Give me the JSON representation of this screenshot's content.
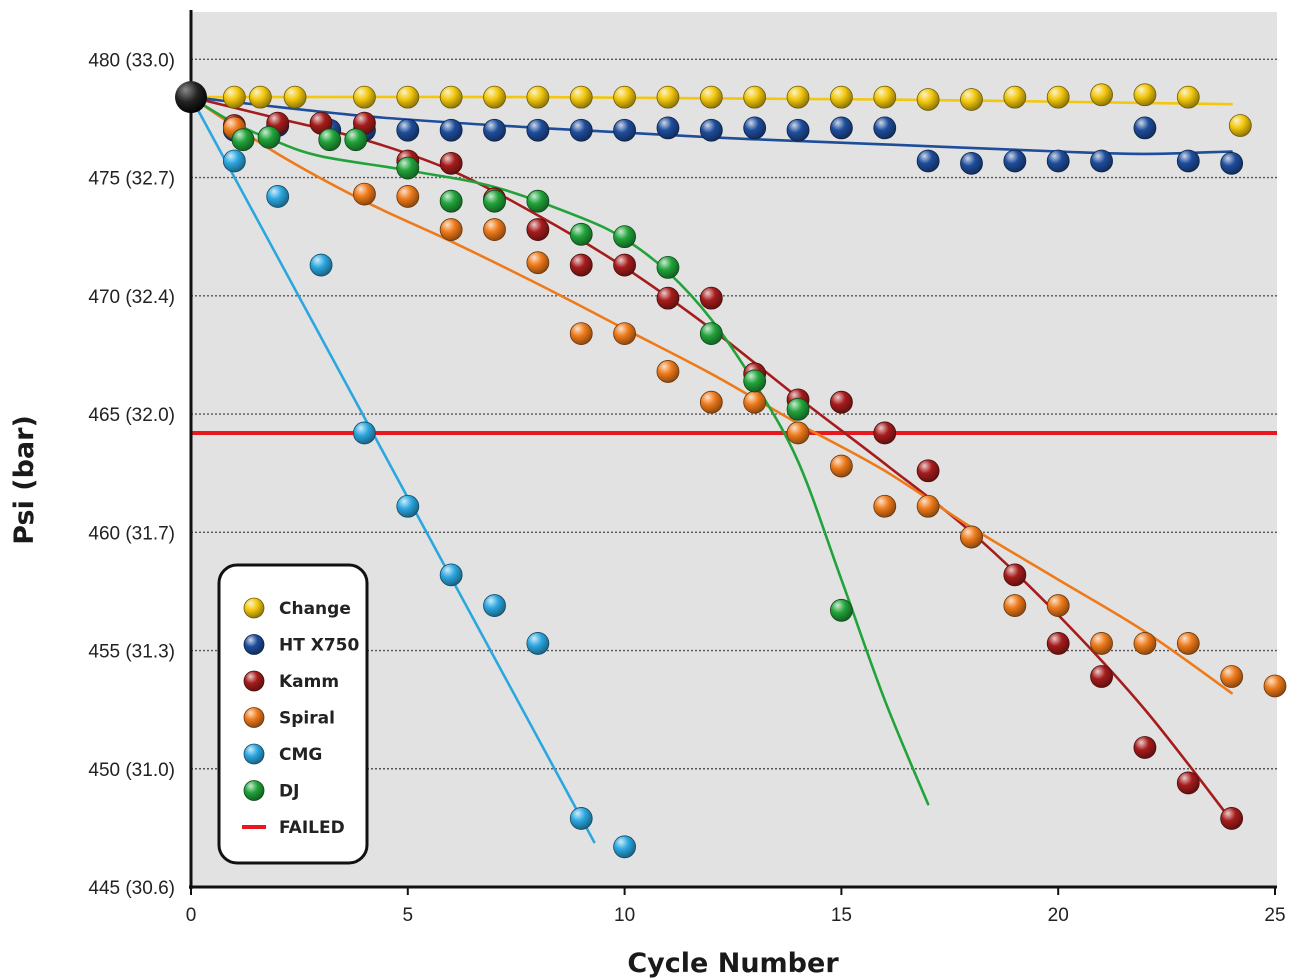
{
  "chart_data": {
    "type": "scatter",
    "xlabel": "Cycle Number",
    "ylabel": "Psi (bar)",
    "xlim": [
      0,
      25
    ],
    "ylim": [
      445,
      482
    ],
    "grid": "horizontal dotted",
    "legend_position": "bottom-left",
    "x_ticks": [
      {
        "value": 0,
        "label": "0"
      },
      {
        "value": 5,
        "label": "5"
      },
      {
        "value": 10,
        "label": "10"
      },
      {
        "value": 15,
        "label": "15"
      },
      {
        "value": 20,
        "label": "20"
      },
      {
        "value": 25,
        "label": "25"
      }
    ],
    "y_ticks": [
      {
        "value": 445,
        "label": "445 (30.6)"
      },
      {
        "value": 450,
        "label": "450 (31.0)"
      },
      {
        "value": 455,
        "label": "455 (31.3)"
      },
      {
        "value": 460,
        "label": "460 (31.7)"
      },
      {
        "value": 465,
        "label": "465 (32.0)"
      },
      {
        "value": 470,
        "label": "470 (32.4)"
      },
      {
        "value": 475,
        "label": "475 (32.7)"
      },
      {
        "value": 480,
        "label": "480 (33.0)"
      }
    ],
    "start_point": {
      "x": 0,
      "y": 478.4
    },
    "failed_threshold": {
      "name": "FAILED",
      "value": 464.2,
      "color": "#e8191e"
    },
    "series": [
      {
        "name": "Change",
        "color": "#f2c70c",
        "points": [
          [
            1,
            478.4
          ],
          [
            1.6,
            478.4
          ],
          [
            2.4,
            478.4
          ],
          [
            4,
            478.4
          ],
          [
            5,
            478.4
          ],
          [
            6,
            478.4
          ],
          [
            7,
            478.4
          ],
          [
            8,
            478.4
          ],
          [
            9,
            478.4
          ],
          [
            10,
            478.4
          ],
          [
            11,
            478.4
          ],
          [
            12,
            478.4
          ],
          [
            13,
            478.4
          ],
          [
            14,
            478.4
          ],
          [
            15,
            478.4
          ],
          [
            16,
            478.4
          ],
          [
            17,
            478.3
          ],
          [
            18,
            478.3
          ],
          [
            19,
            478.4
          ],
          [
            20,
            478.4
          ],
          [
            21,
            478.5
          ],
          [
            22,
            478.5
          ],
          [
            23,
            478.4
          ],
          [
            24.2,
            477.2
          ]
        ],
        "fit": [
          [
            0,
            478.4
          ],
          [
            8,
            478.4
          ],
          [
            16,
            478.3
          ],
          [
            24,
            478.1
          ]
        ]
      },
      {
        "name": "HT X750",
        "color": "#1e4d9c",
        "points": [
          [
            1,
            477.0
          ],
          [
            2,
            477.2
          ],
          [
            3.2,
            477.0
          ],
          [
            4,
            477.0
          ],
          [
            5,
            477.0
          ],
          [
            6,
            477.0
          ],
          [
            7,
            477.0
          ],
          [
            8,
            477.0
          ],
          [
            9,
            477.0
          ],
          [
            10,
            477.0
          ],
          [
            11,
            477.1
          ],
          [
            12,
            477.0
          ],
          [
            13,
            477.1
          ],
          [
            14,
            477.0
          ],
          [
            15,
            477.1
          ],
          [
            16,
            477.1
          ],
          [
            17,
            475.7
          ],
          [
            18,
            475.6
          ],
          [
            19,
            475.7
          ],
          [
            20,
            475.7
          ],
          [
            21,
            475.7
          ],
          [
            22,
            477.1
          ],
          [
            23,
            475.7
          ],
          [
            24,
            475.6
          ]
        ],
        "fit": [
          [
            0,
            478.4
          ],
          [
            4,
            477.6
          ],
          [
            8,
            477.1
          ],
          [
            12,
            476.7
          ],
          [
            16,
            476.4
          ],
          [
            20,
            476.1
          ],
          [
            22,
            476.0
          ],
          [
            24,
            476.1
          ]
        ]
      },
      {
        "name": "Kamm",
        "color": "#a61c1c",
        "points": [
          [
            1,
            477.2
          ],
          [
            2,
            477.3
          ],
          [
            3,
            477.3
          ],
          [
            4,
            477.3
          ],
          [
            5,
            475.7
          ],
          [
            6,
            475.6
          ],
          [
            7,
            474.1
          ],
          [
            8,
            472.8
          ],
          [
            9,
            471.3
          ],
          [
            10,
            471.3
          ],
          [
            11,
            469.9
          ],
          [
            12,
            469.9
          ],
          [
            13,
            466.7
          ],
          [
            14,
            465.6
          ],
          [
            15,
            465.5
          ],
          [
            16,
            464.2
          ],
          [
            17,
            462.6
          ],
          [
            18,
            459.8
          ],
          [
            19,
            458.2
          ],
          [
            20,
            455.3
          ],
          [
            21,
            453.9
          ],
          [
            22,
            450.9
          ],
          [
            23,
            449.4
          ],
          [
            24,
            447.9
          ]
        ],
        "fit": [
          [
            0,
            478.4
          ],
          [
            2,
            477.5
          ],
          [
            4,
            476.6
          ],
          [
            6,
            475.3
          ],
          [
            8,
            473.4
          ],
          [
            10,
            471.2
          ],
          [
            12,
            468.6
          ],
          [
            14,
            465.7
          ],
          [
            16,
            462.9
          ],
          [
            18,
            460.0
          ],
          [
            20,
            456.5
          ],
          [
            22,
            452.5
          ],
          [
            24,
            447.8
          ]
        ]
      },
      {
        "name": "Spiral",
        "color": "#ee7a1a",
        "points": [
          [
            1,
            477.1
          ],
          [
            4,
            474.3
          ],
          [
            5,
            474.2
          ],
          [
            6,
            472.8
          ],
          [
            7,
            472.8
          ],
          [
            8,
            471.4
          ],
          [
            9,
            468.4
          ],
          [
            10,
            468.4
          ],
          [
            11,
            466.8
          ],
          [
            12,
            465.5
          ],
          [
            13,
            465.5
          ],
          [
            14,
            464.2
          ],
          [
            15,
            462.8
          ],
          [
            16,
            461.1
          ],
          [
            17,
            461.1
          ],
          [
            18,
            459.8
          ],
          [
            19,
            456.9
          ],
          [
            20,
            456.9
          ],
          [
            21,
            455.3
          ],
          [
            22,
            455.3
          ],
          [
            23,
            455.3
          ],
          [
            24,
            453.9
          ],
          [
            25,
            453.5
          ]
        ],
        "fit": [
          [
            0,
            478.4
          ],
          [
            2,
            476.0
          ],
          [
            4,
            474.0
          ],
          [
            6,
            472.3
          ],
          [
            8,
            470.5
          ],
          [
            10,
            468.6
          ],
          [
            12,
            466.7
          ],
          [
            14,
            464.6
          ],
          [
            16,
            462.6
          ],
          [
            18,
            460.2
          ],
          [
            20,
            458.0
          ],
          [
            22,
            455.8
          ],
          [
            24,
            453.2
          ]
        ]
      },
      {
        "name": "CMG",
        "color": "#2ba7e0",
        "points": [
          [
            1,
            475.7
          ],
          [
            2,
            474.2
          ],
          [
            3,
            471.3
          ],
          [
            4,
            464.2
          ],
          [
            5,
            461.1
          ],
          [
            6,
            458.2
          ],
          [
            7,
            456.9
          ],
          [
            8,
            455.3
          ],
          [
            9,
            447.9
          ],
          [
            10,
            446.7
          ]
        ],
        "fit": [
          [
            0,
            478.4
          ],
          [
            9.3,
            446.9
          ]
        ]
      },
      {
        "name": "DJ",
        "color": "#21a33a",
        "points": [
          [
            1.2,
            476.6
          ],
          [
            1.8,
            476.7
          ],
          [
            3.2,
            476.6
          ],
          [
            3.8,
            476.6
          ],
          [
            5,
            475.4
          ],
          [
            6,
            474.0
          ],
          [
            7,
            474.0
          ],
          [
            8,
            474.0
          ],
          [
            9,
            472.6
          ],
          [
            10,
            472.5
          ],
          [
            11,
            471.2
          ],
          [
            12,
            468.4
          ],
          [
            13,
            466.4
          ],
          [
            14,
            465.2
          ],
          [
            15,
            456.7
          ]
        ],
        "fit": [
          [
            0,
            478.4
          ],
          [
            1,
            477.3
          ],
          [
            2,
            476.5
          ],
          [
            3,
            475.9
          ],
          [
            5,
            475.3
          ],
          [
            7,
            474.6
          ],
          [
            9,
            473.3
          ],
          [
            10,
            472.4
          ],
          [
            11,
            471.0
          ],
          [
            12,
            469.0
          ],
          [
            13,
            466.3
          ],
          [
            14,
            463.0
          ],
          [
            15,
            458.0
          ],
          [
            16,
            452.9
          ],
          [
            17,
            448.5
          ]
        ]
      }
    ]
  }
}
